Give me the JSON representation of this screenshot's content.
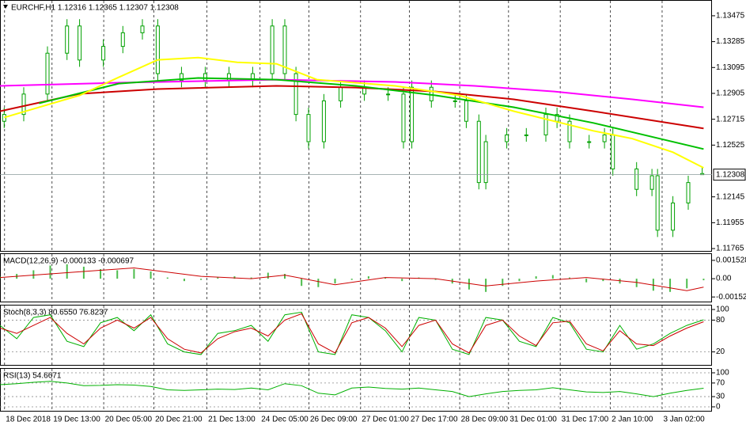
{
  "chart_data": [
    {
      "type": "candlestick",
      "title": "EURCHF,H1  1.12316 1.12365 1.12307 1.12308",
      "color": "#00a000",
      "xlim": [
        0,
        510
      ],
      "ylim": [
        1.11742,
        1.13585
      ],
      "yticks": [
        1.13475,
        1.13285,
        1.13095,
        1.12905,
        1.12715,
        1.12525,
        1.12145,
        1.11955,
        1.11765
      ],
      "last_price": 1.12308,
      "xticks": [
        {
          "value": 3,
          "label": "18 Dec 2018"
        },
        {
          "value": 37,
          "label": "19 Dec 13:00"
        },
        {
          "value": 74,
          "label": "20 Dec 05:00"
        },
        {
          "value": 110,
          "label": "20 Dec 21:00"
        },
        {
          "value": 148,
          "label": "21 Dec 13:00"
        },
        {
          "value": 186,
          "label": "24 Dec 05:00"
        },
        {
          "value": 221,
          "label": "26 Dec 09:00"
        },
        {
          "value": 258,
          "label": "27 Dec 01:00"
        },
        {
          "value": 293,
          "label": "27 Dec 17:00"
        },
        {
          "value": 329,
          "label": "28 Dec 09:00"
        },
        {
          "value": 364,
          "label": "31 Dec 01:00"
        },
        {
          "value": 401,
          "label": "31 Dec 17:00"
        },
        {
          "value": 437,
          "label": "2 Jan 10:00"
        },
        {
          "value": 474,
          "label": "3 Jan 02:00"
        }
      ],
      "x": [
        3,
        17,
        34,
        48,
        57,
        74,
        88,
        102,
        113,
        130,
        147,
        164,
        181,
        195,
        204,
        212,
        221,
        232,
        244,
        261,
        278,
        289,
        295,
        309,
        326,
        334,
        343,
        348,
        363,
        377,
        391,
        399,
        408,
        422,
        433,
        439,
        456,
        467,
        471,
        482,
        493,
        503
      ],
      "open": [
        1.127,
        1.1275,
        1.129,
        1.132,
        1.134,
        1.1315,
        1.1325,
        1.1335,
        1.134,
        1.1305,
        1.13,
        1.1305,
        1.13,
        1.1305,
        1.134,
        1.1305,
        1.1275,
        1.1255,
        1.1285,
        1.1295,
        1.129,
        1.129,
        1.1255,
        1.1295,
        1.1285,
        1.1285,
        1.127,
        1.1225,
        1.1255,
        1.126,
        1.126,
        1.1275,
        1.127,
        1.1255,
        1.1255,
        1.126,
        1.1235,
        1.122,
        1.123,
        1.119,
        1.121,
        1.12316
      ],
      "high": [
        1.128,
        1.1295,
        1.1325,
        1.1345,
        1.1345,
        1.133,
        1.134,
        1.1345,
        1.1345,
        1.131,
        1.131,
        1.131,
        1.131,
        1.1345,
        1.1345,
        1.131,
        1.128,
        1.129,
        1.13,
        1.13,
        1.1295,
        1.1295,
        1.13,
        1.13,
        1.129,
        1.129,
        1.1275,
        1.126,
        1.1265,
        1.1265,
        1.128,
        1.128,
        1.1275,
        1.126,
        1.1265,
        1.1265,
        1.124,
        1.1235,
        1.1235,
        1.1215,
        1.123,
        1.12365
      ],
      "low": [
        1.1265,
        1.127,
        1.1285,
        1.1315,
        1.131,
        1.131,
        1.132,
        1.133,
        1.13,
        1.1295,
        1.1295,
        1.1295,
        1.1295,
        1.13,
        1.13,
        1.127,
        1.125,
        1.125,
        1.128,
        1.1285,
        1.1285,
        1.125,
        1.125,
        1.128,
        1.128,
        1.1265,
        1.122,
        1.122,
        1.125,
        1.1255,
        1.1255,
        1.1265,
        1.125,
        1.125,
        1.125,
        1.123,
        1.1215,
        1.1215,
        1.1185,
        1.1185,
        1.1205,
        1.12307
      ],
      "close": [
        1.1275,
        1.129,
        1.132,
        1.134,
        1.1315,
        1.1325,
        1.1335,
        1.134,
        1.1305,
        1.13,
        1.1305,
        1.13,
        1.1305,
        1.134,
        1.1305,
        1.1275,
        1.1255,
        1.1285,
        1.1295,
        1.129,
        1.129,
        1.1255,
        1.1295,
        1.1285,
        1.1285,
        1.127,
        1.1225,
        1.1255,
        1.126,
        1.126,
        1.1275,
        1.127,
        1.1255,
        1.1255,
        1.126,
        1.1235,
        1.122,
        1.123,
        1.119,
        1.121,
        1.1225,
        1.12308
      ],
      "series": [
        {
          "color": "#ff00ff",
          "x": [
            0,
            85,
            198,
            283,
            340,
            397,
            453,
            504
          ],
          "values": [
            1.1296,
            1.12983,
            1.13006,
            1.12989,
            1.1296,
            1.12919,
            1.12861,
            1.12803
          ]
        },
        {
          "color": "#cc0000",
          "x": [
            0,
            57,
            113,
            198,
            255,
            312,
            368,
            425,
            504
          ],
          "values": [
            1.12774,
            1.12902,
            1.12937,
            1.1296,
            1.12948,
            1.12919,
            1.12861,
            1.12774,
            1.12647
          ]
        },
        {
          "color": "#00c000",
          "x": [
            28,
            85,
            142,
            198,
            255,
            312,
            368,
            425,
            504
          ],
          "values": [
            1.12832,
            1.12977,
            1.13018,
            1.13006,
            1.1296,
            1.1289,
            1.12803,
            1.12688,
            1.12496
          ]
        },
        {
          "color": "#ffff00",
          "x": [
            3,
            57,
            85,
            113,
            142,
            170,
            198,
            227,
            283,
            329,
            368,
            425,
            453,
            482,
            504
          ],
          "values": [
            1.12728,
            1.1289,
            1.13023,
            1.13151,
            1.13168,
            1.13133,
            1.13122,
            1.13006,
            1.1296,
            1.1289,
            1.12774,
            1.1263,
            1.12572,
            1.12473,
            1.12358
          ]
        }
      ]
    },
    {
      "type": "indicator",
      "title": "MACD(12,26,9) -0.000133 -0.000697",
      "xlim": [
        0,
        510
      ],
      "ylim": [
        -0.00197,
        0.00205
      ],
      "yticks": [
        0.001528,
        {
          "value": 0,
          "label": "0.00"
        },
        -0.001521
      ],
      "series": [
        {
          "type": "bar",
          "color": "#00a000",
          "x": [
            0,
            12,
            24,
            36,
            48,
            60,
            72,
            84,
            96,
            108,
            120,
            132,
            144,
            156,
            168,
            180,
            192,
            204,
            216,
            228,
            240,
            252,
            264,
            276,
            288,
            300,
            312,
            324,
            336,
            348,
            360,
            372,
            384,
            396,
            408,
            420,
            432,
            444,
            456,
            468,
            480,
            492,
            504
          ],
          "values": [
            0.0002,
            0.0004,
            0.0007,
            0.0011,
            0.0012,
            0.001,
            0.0008,
            0.0007,
            0.0008,
            0.0006,
            0.0001,
            -0.0002,
            -0.0001,
            0.0001,
            0.0002,
            0.0001,
            0.0005,
            0.0004,
            -0.0006,
            -0.0007,
            -0.0004,
            -0.0001,
            0.0002,
            0.0001,
            -0.0002,
            0.0001,
            -0.0001,
            -0.0004,
            -0.0009,
            -0.0011,
            -0.0006,
            -0.0002,
            0.0002,
            0.0003,
            0.0001,
            -0.0003,
            -0.0002,
            -0.0004,
            -0.0007,
            -0.001,
            -0.0011,
            -0.0008,
            -0.00013
          ]
        },
        {
          "type": "line",
          "color": "#cc0000",
          "x": [
            0,
            48,
            96,
            144,
            180,
            204,
            240,
            276,
            312,
            348,
            384,
            420,
            456,
            492,
            504
          ],
          "values": [
            0.0001,
            0.0005,
            0.0009,
            0.0002,
            0.0,
            0.0003,
            -0.0005,
            0.0001,
            0.0,
            -0.0006,
            -0.0002,
            0.0001,
            -0.0003,
            -0.001,
            -0.0007
          ]
        }
      ]
    },
    {
      "type": "indicator",
      "title": "Stoch(8,3,3) 80.6550 76.8237",
      "xlim": [
        0,
        510
      ],
      "ylim": [
        -6,
        107.5
      ],
      "yticks": [
        100,
        80,
        20
      ],
      "levels": true,
      "x": [
        0,
        12,
        24,
        36,
        48,
        60,
        72,
        84,
        96,
        108,
        120,
        132,
        144,
        156,
        168,
        180,
        192,
        204,
        216,
        228,
        240,
        252,
        264,
        276,
        288,
        300,
        312,
        324,
        336,
        348,
        360,
        372,
        384,
        396,
        408,
        420,
        432,
        444,
        456,
        468,
        480,
        492,
        504
      ],
      "series": [
        {
          "type": "line",
          "color": "#00b000",
          "values": [
            70,
            45,
            85,
            90,
            40,
            30,
            75,
            85,
            60,
            90,
            35,
            20,
            15,
            55,
            60,
            70,
            40,
            90,
            95,
            20,
            15,
            90,
            85,
            60,
            20,
            85,
            80,
            25,
            15,
            85,
            80,
            40,
            30,
            85,
            75,
            25,
            20,
            70,
            25,
            35,
            55,
            70,
            80.655
          ]
        },
        {
          "type": "line",
          "color": "#cc0000",
          "values": [
            65,
            55,
            70,
            85,
            55,
            35,
            65,
            80,
            65,
            85,
            45,
            25,
            18,
            45,
            58,
            65,
            50,
            80,
            92,
            35,
            18,
            75,
            85,
            65,
            30,
            70,
            80,
            35,
            18,
            70,
            80,
            50,
            32,
            75,
            78,
            35,
            22,
            60,
            35,
            32,
            50,
            65,
            76.8237
          ]
        }
      ]
    },
    {
      "type": "indicator",
      "title": "RSI(13) 54.6671",
      "xlim": [
        0,
        510
      ],
      "ylim": [
        -14,
        111.6
      ],
      "yticks": [
        100,
        70,
        30,
        0
      ],
      "levels": true,
      "x": [
        0,
        12,
        24,
        36,
        48,
        60,
        72,
        84,
        96,
        108,
        120,
        132,
        144,
        156,
        168,
        180,
        192,
        204,
        216,
        228,
        240,
        252,
        264,
        276,
        288,
        300,
        312,
        324,
        336,
        348,
        360,
        372,
        384,
        396,
        408,
        420,
        432,
        444,
        456,
        468,
        480,
        492,
        504
      ],
      "series": [
        {
          "type": "line",
          "color": "#00b000",
          "values": [
            65,
            68,
            72,
            75,
            70,
            62,
            63,
            65,
            64,
            60,
            50,
            48,
            50,
            52,
            51,
            55,
            50,
            68,
            62,
            40,
            35,
            55,
            58,
            54,
            52,
            55,
            50,
            45,
            30,
            38,
            45,
            48,
            50,
            56,
            50,
            44,
            42,
            45,
            38,
            30,
            40,
            48,
            54.6671
          ]
        }
      ]
    }
  ]
}
